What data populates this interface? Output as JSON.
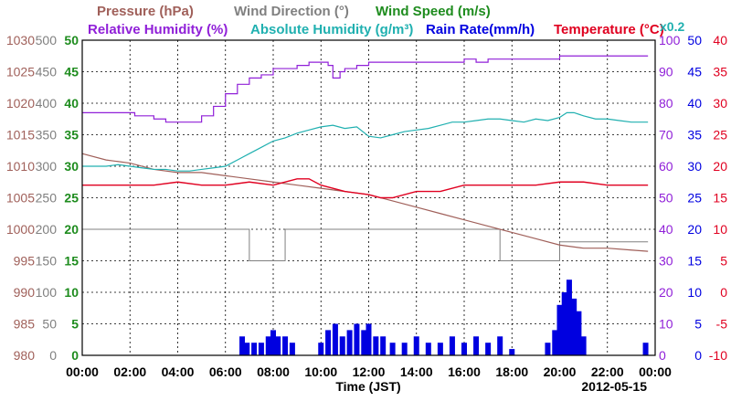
{
  "chart_data": {
    "type": "line",
    "legend": {
      "row1": [
        {
          "key": "pressure",
          "label": "Pressure (hPa)",
          "color": "#a0605a"
        },
        {
          "key": "wind_direction",
          "label": "Wind Direction (°)",
          "color": "#808080"
        },
        {
          "key": "wind_speed",
          "label": "Wind Speed (m/s)",
          "color": "#1e8c1e"
        }
      ],
      "row2": [
        {
          "key": "relative_humidity",
          "label": "Relative Humidity (%)",
          "color": "#9020d8"
        },
        {
          "key": "absolute_humidity",
          "label": "Absolute Humidity (g/m³)",
          "color": "#20b0b0"
        },
        {
          "key": "rain_rate",
          "label": "Rain Rate(mm/h)",
          "color": "#0000e0"
        },
        {
          "key": "temperature",
          "label": "Temperature (°C)",
          "color": "#e00020"
        }
      ],
      "ah_scale_note": "x0.2"
    },
    "xlabel": "Time (JST)",
    "date": "2012-05-15",
    "x_ticks": [
      "00:00",
      "02:00",
      "04:00",
      "06:00",
      "08:00",
      "10:00",
      "12:00",
      "14:00",
      "16:00",
      "18:00",
      "20:00",
      "22:00",
      "00:00"
    ],
    "xlim_hours": [
      0,
      24
    ],
    "axes": {
      "pressure": {
        "ticks": [
          "980",
          "985",
          "990",
          "995",
          "1000",
          "1005",
          "1010",
          "1015",
          "1020",
          "1025",
          "1030"
        ],
        "range": [
          980,
          1030
        ],
        "color": "#a0605a"
      },
      "wind_direction": {
        "ticks": [
          "0",
          "50",
          "100",
          "150",
          "200",
          "250",
          "300",
          "350",
          "400",
          "450",
          "500"
        ],
        "range": [
          0,
          500
        ],
        "color": "#808080"
      },
      "wind_speed": {
        "ticks": [
          "0",
          "5",
          "10",
          "15",
          "20",
          "25",
          "30",
          "35",
          "40",
          "45",
          "50"
        ],
        "range": [
          0,
          50
        ],
        "color": "#1e8c1e"
      },
      "relative_humidity": {
        "ticks": [
          "0",
          "10",
          "20",
          "30",
          "40",
          "50",
          "60",
          "70",
          "80",
          "90",
          "100"
        ],
        "range": [
          0,
          100
        ],
        "color": "#9020d8"
      },
      "rain_rate": {
        "ticks": [
          "0",
          "5",
          "10",
          "15",
          "20",
          "25",
          "30",
          "35",
          "40",
          "45",
          "50"
        ],
        "range": [
          0,
          50
        ],
        "color": "#0000e0"
      },
      "temperature": {
        "ticks": [
          "-10",
          "-5",
          "0",
          "5",
          "10",
          "15",
          "20",
          "25",
          "30",
          "35",
          "40"
        ],
        "range": [
          -10,
          40
        ],
        "color": "#e00020"
      }
    },
    "grid": true,
    "series": [
      {
        "key": "relative_humidity",
        "x": [
          0,
          1.5,
          2.2,
          3,
          3.5,
          4,
          4.6,
          5,
          5.5,
          6,
          6.5,
          7,
          7.5,
          8,
          8.5,
          9,
          9.5,
          10,
          10.3,
          10.5,
          10.8,
          11,
          11.5,
          12,
          13,
          14,
          15,
          16,
          16.5,
          17,
          18,
          19,
          19.5,
          20,
          21,
          22,
          23.7
        ],
        "y": [
          77,
          77,
          76,
          75,
          74,
          74,
          74,
          76,
          79,
          83,
          86,
          88,
          89,
          91,
          91,
          92,
          93,
          93,
          92,
          88,
          90,
          91,
          92,
          93,
          93,
          93,
          93,
          94,
          93,
          94,
          94,
          94,
          94,
          95,
          95,
          95,
          95
        ]
      },
      {
        "key": "absolute_humidity",
        "x": [
          0,
          0.5,
          1,
          1.5,
          2,
          2.5,
          3,
          3.5,
          4,
          4.5,
          5,
          5.5,
          6,
          6.5,
          7,
          7.5,
          8,
          8.5,
          9,
          9.5,
          10,
          10.5,
          11,
          11.5,
          12,
          12.5,
          13,
          13.5,
          14,
          14.5,
          15,
          15.5,
          16,
          16.5,
          17,
          17.5,
          18,
          18.5,
          19,
          19.5,
          20,
          20.3,
          20.6,
          21,
          21.5,
          22,
          22.5,
          23,
          23.7
        ],
        "y": [
          60,
          60,
          60,
          60.5,
          60,
          59.5,
          59,
          59,
          58.5,
          58.5,
          59,
          59.5,
          60,
          62,
          64,
          66,
          68,
          69,
          70.5,
          71.5,
          72.5,
          73,
          72,
          72.5,
          69.5,
          69,
          70,
          71,
          71.5,
          72,
          73,
          74,
          74,
          74.5,
          75,
          75,
          74.5,
          74,
          75,
          74.5,
          75.5,
          77,
          77,
          76,
          75,
          75,
          74.5,
          74,
          74
        ]
      },
      {
        "key": "temperature",
        "x": [
          0,
          1,
          2,
          3,
          4,
          5,
          6,
          7,
          8,
          9,
          9.5,
          10,
          11,
          12,
          12.5,
          13,
          14,
          15,
          16,
          17,
          18,
          19,
          20,
          21,
          22,
          23,
          23.7
        ],
        "y": [
          17,
          17,
          17,
          17,
          17.5,
          17,
          17,
          17.5,
          17,
          18,
          18,
          17,
          16,
          15.5,
          15,
          15,
          16,
          16,
          17,
          17,
          17,
          17,
          17.5,
          17.5,
          17,
          17,
          17
        ]
      },
      {
        "key": "pressure",
        "x": [
          0,
          1,
          2,
          3,
          4,
          5,
          6,
          7,
          8,
          9,
          10,
          11,
          12,
          13,
          14,
          15,
          16,
          17,
          18,
          19,
          20,
          21,
          22,
          23,
          23.7
        ],
        "y": [
          1012,
          1011,
          1010.5,
          1009.5,
          1009,
          1009,
          1008.5,
          1008,
          1007.5,
          1007,
          1006.5,
          1006,
          1005.5,
          1004.5,
          1003.5,
          1002.5,
          1001.5,
          1000.5,
          999.5,
          998.5,
          997.5,
          997,
          997,
          996.7,
          996.5
        ]
      },
      {
        "key": "wind_direction_median",
        "x": [
          0,
          0.5,
          1,
          1.5,
          2,
          2.5,
          3,
          3.5,
          4,
          4.5,
          5,
          5.5,
          6,
          6.5,
          7,
          7.5,
          8,
          8.5,
          9,
          9.5,
          10,
          10.5,
          11,
          11.5,
          12,
          12.5,
          13,
          13.5,
          14,
          14.5,
          15,
          15.5,
          16,
          16.5,
          17,
          17.5,
          18,
          18.5,
          19,
          19.5,
          20,
          21,
          22,
          23.7
        ],
        "y": [
          200,
          200,
          200,
          200,
          200,
          200,
          200,
          200,
          200,
          200,
          200,
          200,
          200,
          200,
          150,
          150,
          150,
          200,
          200,
          200,
          200,
          200,
          200,
          200,
          200,
          200,
          200,
          200,
          200,
          200,
          200,
          200,
          200,
          200,
          200,
          150,
          150,
          150,
          150,
          150,
          180,
          180,
          180,
          180
        ]
      },
      {
        "key": "rain_rate_events",
        "x": [
          6.7,
          6.9,
          7.2,
          7.5,
          7.8,
          8.0,
          8.2,
          8.5,
          8.8,
          10.0,
          10.3,
          10.6,
          10.9,
          11.2,
          11.5,
          11.8,
          12.0,
          12.3,
          12.6,
          13.0,
          13.5,
          14.0,
          14.5,
          15.0,
          15.5,
          16.0,
          16.5,
          17.0,
          17.5,
          18.0,
          19.5,
          19.8,
          20.0,
          20.2,
          20.4,
          20.6,
          20.8,
          21.0,
          23.6
        ],
        "y": [
          3,
          2,
          2,
          2,
          3,
          4,
          3,
          3,
          2,
          2,
          4,
          5,
          3,
          4,
          5,
          4,
          5,
          3,
          3,
          2,
          2,
          3,
          2,
          2,
          3,
          2,
          3,
          2,
          3,
          1,
          2,
          4,
          8,
          10,
          12,
          9,
          7,
          3,
          2
        ]
      }
    ]
  }
}
